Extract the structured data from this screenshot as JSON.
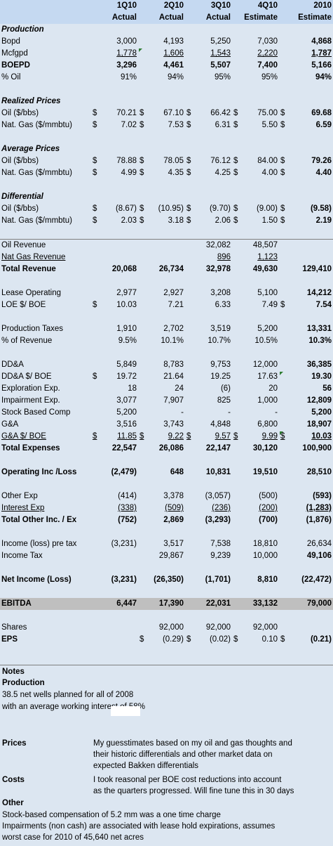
{
  "columns": [
    {
      "line1": "1Q10",
      "line2": "Actual"
    },
    {
      "line1": "2Q10",
      "line2": "Actual"
    },
    {
      "line1": "3Q10",
      "line2": "Actual"
    },
    {
      "line1": "4Q10",
      "line2": "Estimate"
    },
    {
      "line1": "2010",
      "line2": "Estimate"
    }
  ],
  "sections": {
    "production": "Production",
    "realized": "Realized Prices",
    "average": "Average Prices",
    "differential": "Differential"
  },
  "rows": {
    "bopd": {
      "label": "Bopd",
      "v": [
        "3,000",
        "4,193",
        "5,250",
        "7,030",
        "4,868"
      ]
    },
    "mcfgpd": {
      "label": "Mcfgpd",
      "v": [
        "1,778",
        "1,606",
        "1,543",
        "2,220",
        "1,787"
      ]
    },
    "boepd": {
      "label": "BOEPD",
      "v": [
        "3,296",
        "4,461",
        "5,507",
        "7,400",
        "5,166"
      ]
    },
    "pct_oil": {
      "label": "% Oil",
      "v": [
        "91%",
        "94%",
        "95%",
        "95%",
        "94%"
      ]
    },
    "rp_oil": {
      "label": "Oil ($/bbs)",
      "v": [
        "70.21",
        "67.10",
        "66.42",
        "75.00",
        "69.68"
      ]
    },
    "rp_gas": {
      "label": "Nat. Gas ($/mmbtu)",
      "v": [
        "7.02",
        "7.53",
        "6.31",
        "5.50",
        "6.59"
      ]
    },
    "ap_oil": {
      "label": "Oil ($/bbs)",
      "v": [
        "78.88",
        "78.05",
        "76.12",
        "84.00",
        "79.26"
      ]
    },
    "ap_gas": {
      "label": "Nat. Gas ($/mmbtu)",
      "v": [
        "4.99",
        "4.35",
        "4.25",
        "4.00",
        "4.40"
      ]
    },
    "d_oil": {
      "label": "Oil ($/bbs)",
      "v": [
        "(8.67)",
        "(10.95)",
        "(9.70)",
        "(9.00)",
        "(9.58)"
      ]
    },
    "d_gas": {
      "label": "Nat. Gas ($/mmbtu)",
      "v": [
        "2.03",
        "3.18",
        "2.06",
        "1.50",
        "2.19"
      ]
    },
    "oil_rev": {
      "label": "Oil Revenue",
      "v": [
        "",
        "",
        "32,082",
        "48,507",
        ""
      ]
    },
    "gas_rev": {
      "label": "Nat Gas Revenue",
      "v": [
        "",
        "",
        "896",
        "1,123",
        ""
      ]
    },
    "total_rev": {
      "label": "Total Revenue",
      "v": [
        "20,068",
        "26,734",
        "32,978",
        "49,630",
        "129,410"
      ]
    },
    "lease_op": {
      "label": "Lease Operating",
      "v": [
        "2,977",
        "2,927",
        "3,208",
        "5,100",
        "14,212"
      ]
    },
    "loe_boe": {
      "label": "LOE $/ BOE",
      "v": [
        "10.03",
        "7.21",
        "6.33",
        "7.49",
        "7.54"
      ]
    },
    "prod_tax": {
      "label": "Production Taxes",
      "v": [
        "1,910",
        "2,702",
        "3,519",
        "5,200",
        "13,331"
      ]
    },
    "pct_rev": {
      "label": "% of Revenue",
      "v": [
        "9.5%",
        "10.1%",
        "10.7%",
        "10.5%",
        "10.3%"
      ]
    },
    "dda": {
      "label": "DD&A",
      "v": [
        "5,849",
        "8,783",
        "9,753",
        "12,000",
        "36,385"
      ]
    },
    "dda_boe": {
      "label": "DD&A $/ BOE",
      "v": [
        "19.72",
        "21.64",
        "19.25",
        "17.63",
        "19.30"
      ]
    },
    "explor": {
      "label": "Exploration Exp.",
      "v": [
        "18",
        "24",
        "(6)",
        "20",
        "56"
      ]
    },
    "impair": {
      "label": "Impairment Exp.",
      "v": [
        "3,077",
        "7,907",
        "825",
        "1,000",
        "12,809"
      ]
    },
    "stock": {
      "label": "Stock Based Comp",
      "v": [
        "5,200",
        "-",
        "-",
        "-",
        "5,200"
      ]
    },
    "ga": {
      "label": "G&A",
      "v": [
        "3,516",
        "3,743",
        "4,848",
        "6,800",
        "18,907"
      ]
    },
    "ga_boe": {
      "label": "G&A $/ BOE",
      "v": [
        "11.85",
        "9.22",
        "9.57",
        "9.99",
        "10.03"
      ]
    },
    "total_exp": {
      "label": "Total Expenses",
      "v": [
        "22,547",
        "26,086",
        "22,147",
        "30,120",
        "100,900"
      ]
    },
    "op_inc": {
      "label": "Operating Inc /Loss",
      "v": [
        "(2,479)",
        "648",
        "10,831",
        "19,510",
        "28,510"
      ]
    },
    "other_exp": {
      "label": "Other Exp",
      "v": [
        "(414)",
        "3,378",
        "(3,057)",
        "(500)",
        "(593)"
      ]
    },
    "int_exp": {
      "label": "Interest Exp",
      "v": [
        "(338)",
        "(509)",
        "(236)",
        "(200)",
        "(1,283)"
      ]
    },
    "total_other": {
      "label": "Total Other Inc. / Ex",
      "v": [
        "(752)",
        "2,869",
        "(3,293)",
        "(700)",
        "(1,876)"
      ]
    },
    "pretax": {
      "label": "Income (loss) pre tax",
      "v": [
        "(3,231)",
        "3,517",
        "7,538",
        "18,810",
        "26,634"
      ]
    },
    "inc_tax": {
      "label": "Income Tax",
      "v": [
        "",
        "29,867",
        "9,239",
        "10,000",
        "49,106"
      ]
    },
    "net_inc": {
      "label": "Net Income (Loss)",
      "v": [
        "(3,231)",
        "(26,350)",
        "(1,701)",
        "8,810",
        "(22,472)"
      ]
    },
    "ebitda": {
      "label": "EBITDA",
      "v": [
        "6,447",
        "17,390",
        "22,031",
        "33,132",
        "79,000"
      ]
    },
    "shares": {
      "label": "Shares",
      "v": [
        "",
        "92,000",
        "92,000",
        "92,000",
        ""
      ]
    },
    "eps": {
      "label": "EPS",
      "v": [
        "",
        "(0.29)",
        "(0.02)",
        "0.10",
        "(0.21)"
      ]
    }
  },
  "notes": {
    "title": "Notes",
    "production_h": "Production",
    "production_1": "38.5 net wells planned for all of 2008",
    "production_2": "with an average working interest of 58%",
    "prices_h": "Prices",
    "prices_1": "My guesstimates based on my oil and gas thoughts and",
    "prices_2": "their historic differentials and other market data on",
    "prices_3": "expected Bakken differentials",
    "costs_h": "Costs",
    "costs_1": "I took reasonal per BOE cost reductions into account",
    "costs_2": "as the quarters progressed. Will fine tune this in 30 days",
    "other_h": "Other",
    "other_1": "Stock-based compensation of 5.2 mm was a one time charge",
    "other_2": "Impairments (non cash) are associated with lease hold expirations, assumes",
    "other_3": "worst case for 2010 of 45,640 net acres"
  }
}
